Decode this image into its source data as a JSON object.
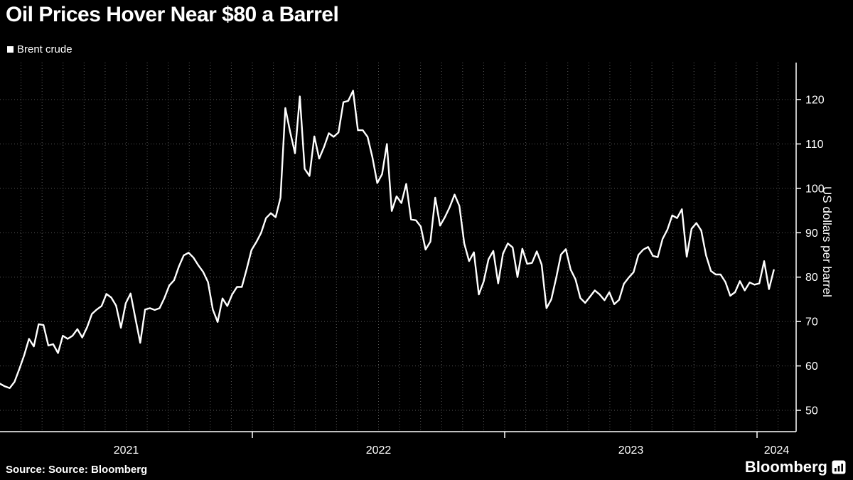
{
  "header": {
    "title": "Oil Prices Hover Near $80 a Barrel"
  },
  "footer": {
    "source": "Source: Source: Bloomberg",
    "brand": "Bloomberg"
  },
  "colors": {
    "background": "#000000",
    "line": "#ffffff",
    "grid": "#5a5a5a"
  },
  "chart_data": {
    "type": "line",
    "title": "Oil Prices Hover Near $80 a Barrel",
    "xlabel": "",
    "ylabel": "US dollars per barrel",
    "legend_position": "top-left",
    "grid": "dotted",
    "background": "#000000",
    "line_color": "#ffffff",
    "y_ticks": [
      50,
      60,
      70,
      80,
      90,
      100,
      110,
      120
    ],
    "ylim": [
      45,
      128
    ],
    "x_year_ticks": [
      2021,
      2022,
      2023,
      2024
    ],
    "xlim": [
      "2021-01",
      "2024-03"
    ],
    "x_start": "2021-01-08",
    "x_interval_days": 7,
    "series": [
      {
        "name": "Brent crude",
        "units": "US dollars per barrel",
        "values": [
          55.99,
          55.4,
          55.0,
          56.4,
          59.3,
          62.4,
          66.1,
          64.4,
          69.4,
          69.2,
          64.6,
          64.9,
          62.9,
          66.8,
          66.1,
          66.8,
          68.3,
          66.4,
          68.7,
          71.7,
          72.7,
          73.5,
          76.2,
          75.4,
          73.6,
          68.6,
          74.1,
          76.3,
          70.7,
          65.2,
          72.7,
          73.0,
          72.6,
          73.0,
          75.3,
          78.1,
          79.3,
          82.4,
          84.9,
          85.5,
          84.4,
          82.7,
          81.2,
          78.9,
          72.7,
          69.9,
          75.2,
          73.5,
          76.1,
          77.8,
          77.8,
          81.8,
          86.1,
          87.9,
          90.0,
          93.3,
          94.4,
          93.5,
          97.9,
          118.1,
          112.7,
          107.9,
          120.7,
          104.4,
          102.8,
          111.7,
          106.7,
          109.3,
          112.4,
          111.6,
          112.6,
          119.4,
          119.7,
          122.0,
          113.1,
          113.1,
          111.6,
          107.0,
          101.2,
          103.2,
          110.0,
          94.9,
          98.2,
          96.7,
          101.0,
          93.0,
          92.8,
          91.4,
          86.2,
          88.0,
          97.9,
          91.6,
          93.5,
          95.8,
          98.6,
          96.0,
          87.6,
          83.6,
          85.6,
          76.1,
          79.0,
          84.0,
          85.9,
          78.6,
          85.3,
          87.6,
          86.7,
          80.0,
          86.4,
          83.0,
          83.2,
          85.8,
          82.8,
          73.0,
          75.0,
          79.8,
          85.1,
          86.3,
          81.7,
          79.5,
          75.3,
          74.2,
          75.6,
          77.0,
          76.1,
          74.8,
          76.6,
          73.9,
          74.9,
          78.5,
          79.9,
          81.1,
          85.0,
          86.2,
          86.8,
          84.8,
          84.5,
          88.6,
          90.7,
          93.9,
          93.3,
          95.3,
          84.6,
          90.9,
          92.2,
          90.5,
          84.9,
          81.4,
          80.6,
          80.6,
          78.9,
          75.8,
          76.6,
          79.1,
          77.0,
          78.8,
          78.3,
          78.6,
          83.6,
          77.3,
          81.6
        ]
      }
    ]
  }
}
